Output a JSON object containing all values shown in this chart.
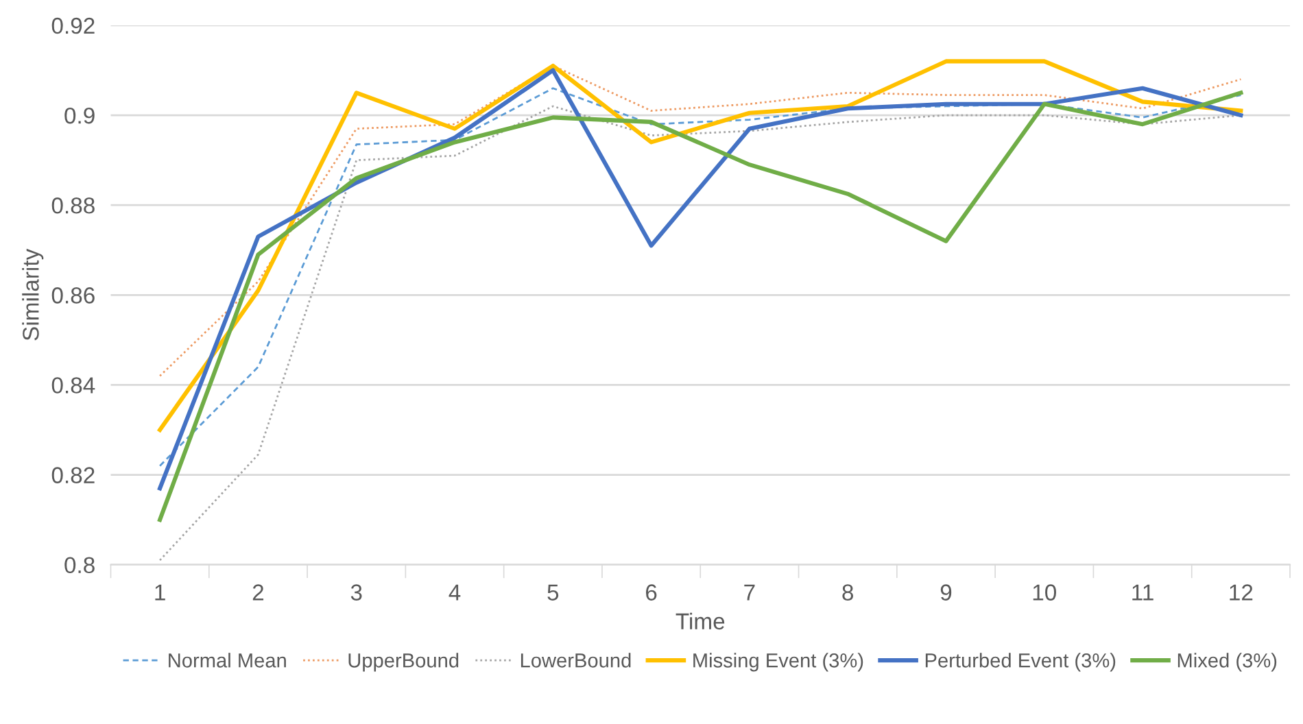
{
  "chart_data": {
    "type": "line",
    "xlabel": "Time",
    "ylabel": "Similarity",
    "categories": [
      "1",
      "2",
      "3",
      "4",
      "5",
      "6",
      "7",
      "8",
      "9",
      "10",
      "11",
      "12"
    ],
    "ylim": [
      0.8,
      0.92
    ],
    "yticks": [
      0.8,
      0.82,
      0.84,
      0.86,
      0.88,
      0.9,
      0.92
    ],
    "grid": "y",
    "legend": "bottom",
    "marker": "none",
    "series": [
      {
        "name": "Normal Mean",
        "color": "#5b9bd5",
        "line_style": "dashed",
        "values": [
          0.822,
          0.844,
          0.8935,
          0.8945,
          0.906,
          0.898,
          0.899,
          0.9015,
          0.902,
          0.9025,
          0.8995,
          0.9045
        ]
      },
      {
        "name": "UpperBound",
        "color": "#ed9a62",
        "line_style": "dotted",
        "values": [
          0.842,
          0.863,
          0.897,
          0.898,
          0.911,
          0.901,
          0.9025,
          0.905,
          0.9045,
          0.9045,
          0.9015,
          0.908
        ]
      },
      {
        "name": "LowerBound",
        "color": "#a5a5a5",
        "line_style": "dotted",
        "values": [
          0.801,
          0.8245,
          0.89,
          0.891,
          0.902,
          0.8955,
          0.8965,
          0.8985,
          0.9,
          0.9,
          0.898,
          0.9
        ]
      },
      {
        "name": "Missing Event (3%)",
        "color": "#ffc000",
        "line_style": "solid",
        "values": [
          0.83,
          0.861,
          0.905,
          0.897,
          0.911,
          0.894,
          0.9005,
          0.902,
          0.912,
          0.912,
          0.903,
          0.901
        ]
      },
      {
        "name": "Perturbed Event (3%)",
        "color": "#4472c4",
        "line_style": "solid",
        "values": [
          0.817,
          0.873,
          0.885,
          0.895,
          0.91,
          0.871,
          0.897,
          0.9015,
          0.9025,
          0.9025,
          0.906,
          0.9
        ]
      },
      {
        "name": "Mixed (3%)",
        "color": "#70ad47",
        "line_style": "solid",
        "values": [
          0.81,
          0.869,
          0.886,
          0.894,
          0.8995,
          0.8985,
          0.889,
          0.8825,
          0.872,
          0.9025,
          0.898,
          0.905
        ]
      }
    ]
  }
}
